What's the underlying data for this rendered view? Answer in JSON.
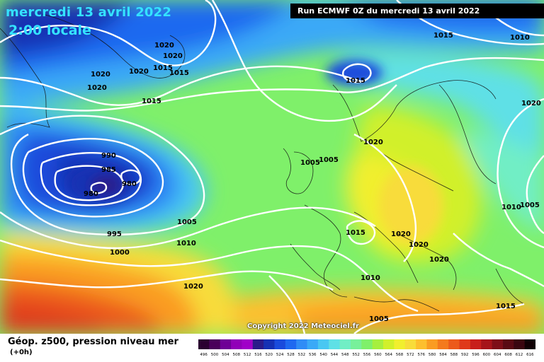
{
  "header": {
    "date": "mercredi 13 avril 2022",
    "time": "2:00 locale",
    "run": "Run ECMWF 0Z du mercredi 13 avril 2022"
  },
  "footer": {
    "field_title": "Géop. z500, pression niveau mer",
    "lead": "(+0h)",
    "copyright": "Copyright 2022 Meteociel.fr"
  },
  "legend": {
    "ticks": [
      "496",
      "500",
      "504",
      "508",
      "512",
      "516",
      "520",
      "524",
      "528",
      "532",
      "536",
      "540",
      "544",
      "548",
      "552",
      "556",
      "560",
      "564",
      "568",
      "572",
      "576",
      "580",
      "584",
      "588",
      "592",
      "596",
      "600",
      "604",
      "608",
      "612",
      "616"
    ],
    "colors": [
      "#2a0030",
      "#4a005a",
      "#6e0096",
      "#9100b8",
      "#a000c8",
      "#2a1b8a",
      "#1530b4",
      "#1a4bdc",
      "#1f69f0",
      "#2f8cf6",
      "#3aa9f7",
      "#49c7f2",
      "#5fe0e6",
      "#71eec5",
      "#77f09a",
      "#7ff06a",
      "#a6ef3e",
      "#d1f02a",
      "#f1ef2e",
      "#f8dc3a",
      "#fdbf2e",
      "#fa9c22",
      "#f47a1d",
      "#ec5a1b",
      "#df3a1a",
      "#c81f1c",
      "#a6141a",
      "#7e0e18",
      "#5a0a14",
      "#3a0610",
      "#100004"
    ]
  },
  "isobars": [
    {
      "value": "1020",
      "color": "#ffffff"
    },
    {
      "value": "1015",
      "color": "#ffffff"
    },
    {
      "value": "1010",
      "color": "#ffffff"
    },
    {
      "value": "1005",
      "color": "#ffffff"
    },
    {
      "value": "1000",
      "color": "#ffffff"
    },
    {
      "value": "995",
      "color": "#ffffff"
    },
    {
      "value": "990",
      "color": "#ffffff"
    },
    {
      "value": "985",
      "color": "#ffffff"
    },
    {
      "value": "980",
      "color": "#ffffff"
    }
  ],
  "pressure_labels": [
    {
      "text": "1020"
    },
    {
      "text": "1020"
    },
    {
      "text": "1020"
    },
    {
      "text": "1020"
    },
    {
      "text": "1020"
    },
    {
      "text": "1015"
    },
    {
      "text": "1015"
    },
    {
      "text": "1015"
    },
    {
      "text": "1015"
    },
    {
      "text": "1010"
    },
    {
      "text": "1020"
    },
    {
      "text": "1020"
    },
    {
      "text": "990"
    },
    {
      "text": "985"
    },
    {
      "text": "980"
    },
    {
      "text": "980"
    },
    {
      "text": "995"
    },
    {
      "text": "1000"
    },
    {
      "text": "1005"
    },
    {
      "text": "1010"
    },
    {
      "text": "1020"
    },
    {
      "text": "1005"
    },
    {
      "text": "1005"
    },
    {
      "text": "1015"
    },
    {
      "text": "1015"
    },
    {
      "text": "1020"
    },
    {
      "text": "1020"
    },
    {
      "text": "1020"
    },
    {
      "text": "1010"
    },
    {
      "text": "1010"
    },
    {
      "text": "1005"
    },
    {
      "text": "1005"
    },
    {
      "text": "1015"
    }
  ]
}
